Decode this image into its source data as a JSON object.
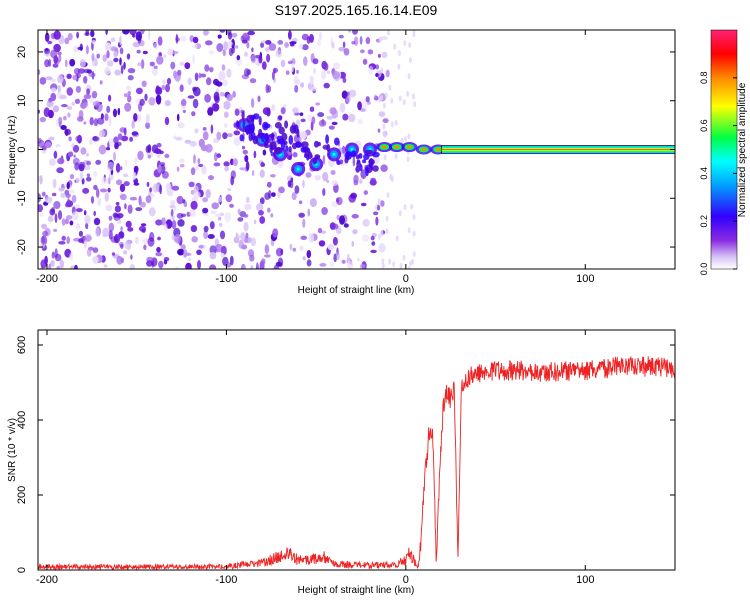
{
  "title": "S197.2025.165.16.14.E09",
  "chart_data": [
    {
      "type": "heatmap",
      "xlabel": "Height of straight line (km)",
      "ylabel": "Frequency (Hz)",
      "xlim": [
        -205,
        150
      ],
      "ylim": [
        -24.5,
        24.5
      ],
      "x_ticks": [
        -200,
        -100,
        0,
        100
      ],
      "y_ticks": [
        -20,
        -10,
        0,
        10,
        20
      ],
      "colorbar": {
        "label": "Normalized spectral amplitude",
        "range": [
          0,
          1
        ],
        "ticks": [
          "0.0",
          "0.2",
          "0.4",
          "0.6",
          "0.8"
        ],
        "tick_values": [
          0,
          0.2,
          0.4,
          0.6,
          0.8
        ],
        "colors": [
          "#ffffff",
          "#8a2be2",
          "#3300ff",
          "#00ffff",
          "#00ff00",
          "#ffff00",
          "#ff8800",
          "#ff0000",
          "#ff2277"
        ]
      },
      "features": {
        "noise_region_x": [
          -205,
          -10
        ],
        "descending_streak": [
          [
            -90,
            5
          ],
          [
            -80,
            2
          ],
          [
            -70,
            -1
          ],
          [
            -60,
            -4
          ],
          [
            -50,
            -3
          ],
          [
            -40,
            -1
          ],
          [
            -30,
            0
          ],
          [
            -20,
            0
          ]
        ],
        "blobs": [
          [
            -12,
            0.5
          ],
          [
            -5,
            0.5
          ],
          [
            2,
            0.5
          ],
          [
            10,
            0
          ],
          [
            18,
            0
          ]
        ],
        "steady_band": {
          "x_start": 20,
          "x_end": 150,
          "frequency": 0
        }
      }
    },
    {
      "type": "line",
      "xlabel": "Height of straight line (km)",
      "ylabel": "SNR (10 * v/v)",
      "xlim": [
        -205,
        150
      ],
      "ylim": [
        0,
        640
      ],
      "x_ticks": [
        -200,
        -100,
        0,
        100
      ],
      "y_ticks": [
        0,
        200,
        400,
        600
      ],
      "line_color": "#ee2222",
      "envelope": [
        [
          -205,
          15
        ],
        [
          -150,
          15
        ],
        [
          -100,
          15
        ],
        [
          -80,
          30
        ],
        [
          -70,
          55
        ],
        [
          -65,
          70
        ],
        [
          -60,
          40
        ],
        [
          -50,
          45
        ],
        [
          -47,
          60
        ],
        [
          -40,
          25
        ],
        [
          -20,
          20
        ],
        [
          -5,
          25
        ],
        [
          0,
          40
        ],
        [
          2,
          80
        ],
        [
          5,
          30
        ],
        [
          7,
          10
        ],
        [
          9,
          150
        ],
        [
          11,
          300
        ],
        [
          13,
          390
        ],
        [
          15,
          380
        ],
        [
          17,
          40
        ],
        [
          19,
          300
        ],
        [
          21,
          470
        ],
        [
          23,
          500
        ],
        [
          25,
          480
        ],
        [
          27,
          510
        ],
        [
          29,
          50
        ],
        [
          31,
          520
        ],
        [
          35,
          540
        ],
        [
          45,
          560
        ],
        [
          60,
          560
        ],
        [
          80,
          555
        ],
        [
          100,
          560
        ],
        [
          120,
          570
        ],
        [
          140,
          570
        ],
        [
          150,
          565
        ]
      ]
    }
  ]
}
